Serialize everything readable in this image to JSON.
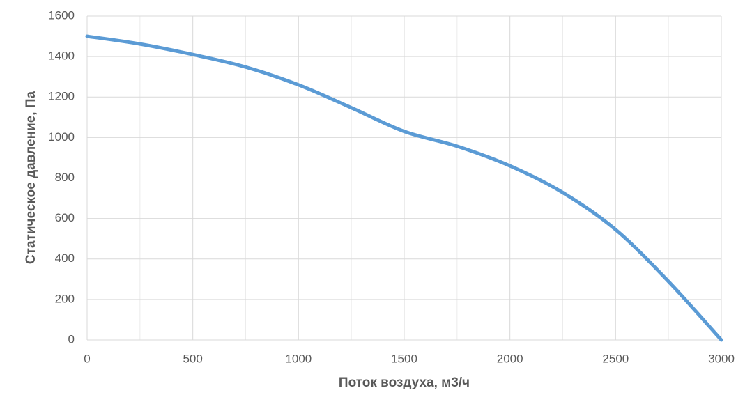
{
  "chart_data": {
    "type": "line",
    "xlabel": "Поток воздуха, м3/ч",
    "ylabel": "Статическое давление, Па",
    "x": [
      0,
      250,
      500,
      750,
      1000,
      1250,
      1500,
      1750,
      2000,
      2250,
      2500,
      2750,
      3000
    ],
    "series": [
      {
        "color": "#5b9bd5",
        "values": [
          1500,
          1462,
          1410,
          1348,
          1260,
          1147,
          1030,
          957,
          860,
          728,
          545,
          289,
          0
        ]
      }
    ],
    "xlim": [
      0,
      3000
    ],
    "xticks": [
      0,
      500,
      1000,
      1500,
      2000,
      2500,
      3000
    ],
    "ylim": [
      0,
      1600
    ],
    "yticks": [
      0,
      200,
      400,
      600,
      800,
      1000,
      1200,
      1400,
      1600
    ],
    "grid": true,
    "minor_x_grid": true
  }
}
